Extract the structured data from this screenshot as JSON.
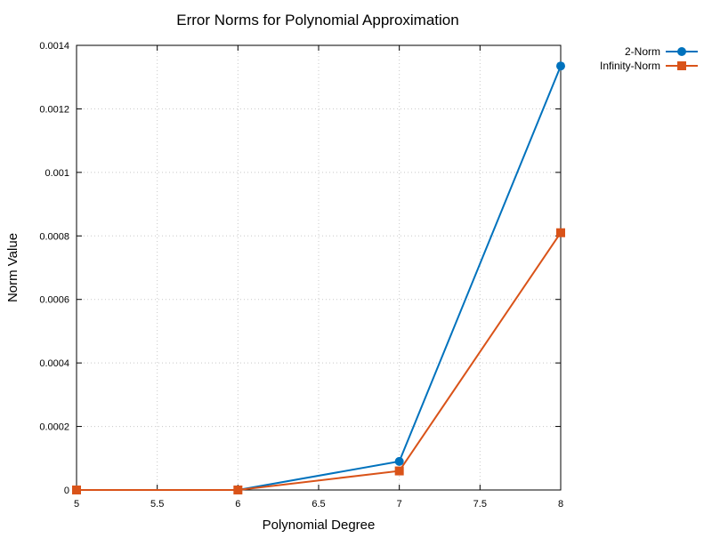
{
  "chart_data": {
    "type": "line",
    "title": "Error Norms for Polynomial Approximation",
    "xlabel": "Polynomial Degree",
    "ylabel": "Norm Value",
    "xlim": [
      5,
      8
    ],
    "ylim": [
      0,
      0.0014
    ],
    "x_ticks": [
      5,
      5.5,
      6,
      6.5,
      7,
      7.5,
      8
    ],
    "x_tick_labels": [
      "5",
      "5.5",
      "6",
      "6.5",
      "7",
      "7.5",
      "8"
    ],
    "y_ticks": [
      0,
      0.0002,
      0.0004,
      0.0006,
      0.0008,
      0.001,
      0.0012,
      0.0014
    ],
    "y_tick_labels": [
      "0",
      "0.0002",
      "0.0004",
      "0.0006",
      "0.0008",
      "0.001",
      "0.0012",
      "0.0014"
    ],
    "grid": true,
    "legend_position": "top-right outside plot",
    "series": [
      {
        "name": "2-Norm",
        "color": "#0072bd",
        "marker": "circle",
        "x": [
          5,
          6,
          7,
          8
        ],
        "values": [
          0,
          0,
          9e-05,
          0.001335
        ]
      },
      {
        "name": "Infinity-Norm",
        "color": "#d95319",
        "marker": "square",
        "x": [
          5,
          6,
          7,
          8
        ],
        "values": [
          0,
          0,
          6e-05,
          0.00081
        ]
      }
    ]
  }
}
